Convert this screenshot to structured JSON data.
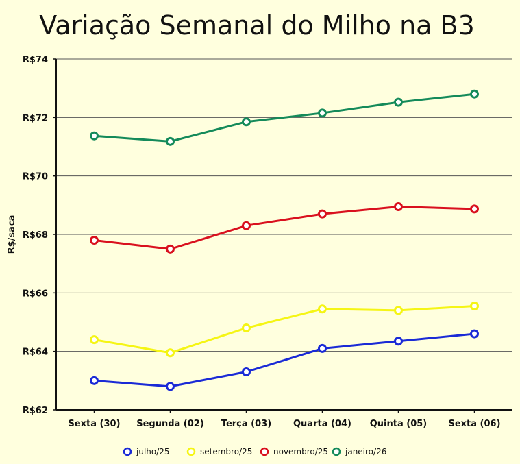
{
  "chart_data": {
    "type": "line",
    "title": "Variação Semanal do Milho na B3",
    "xlabel": "",
    "ylabel": "R$/saca",
    "categories": [
      "Sexta (30)",
      "Segunda (02)",
      "Terça (03)",
      "Quarta (04)",
      "Quinta (05)",
      "Sexta (06)"
    ],
    "y_ticks": [
      62,
      64,
      66,
      68,
      70,
      72,
      74
    ],
    "y_tick_labels": [
      "R$62",
      "R$64",
      "R$66",
      "R$68",
      "R$70",
      "R$72",
      "R$74"
    ],
    "ylim": [
      62,
      74
    ],
    "grid": "horizontal",
    "legend_position": "bottom",
    "series": [
      {
        "name": "julho/25",
        "color": "#1a2ad6",
        "values": [
          63.0,
          62.8,
          63.3,
          64.1,
          64.35,
          64.6
        ]
      },
      {
        "name": "setembro/25",
        "color": "#f5f514",
        "values": [
          64.4,
          63.95,
          64.8,
          65.45,
          65.4,
          65.55
        ]
      },
      {
        "name": "novembro/25",
        "color": "#d9101e",
        "values": [
          67.8,
          67.5,
          68.3,
          68.7,
          68.95,
          68.87
        ]
      },
      {
        "name": "janeiro/26",
        "color": "#148a5a",
        "values": [
          71.37,
          71.18,
          71.85,
          72.15,
          72.52,
          72.8
        ]
      }
    ]
  }
}
